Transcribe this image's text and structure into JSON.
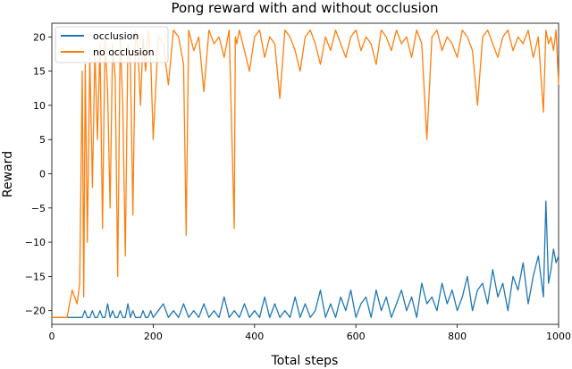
{
  "chart_data": {
    "type": "line",
    "title": "Pong reward with and without occlusion",
    "xlabel": "Total steps",
    "ylabel": "Reward",
    "xlim": [
      0,
      1000
    ],
    "ylim": [
      -22,
      22
    ],
    "xticks": [
      0,
      200,
      400,
      600,
      800,
      1000
    ],
    "yticks": [
      -20,
      -15,
      -10,
      -5,
      0,
      5,
      10,
      15,
      20
    ],
    "grid": false,
    "legend": "top-left",
    "series": [
      {
        "name": "occlusion",
        "color": "#1f77b4",
        "x": [
          0,
          40,
          60,
          65,
          70,
          75,
          80,
          85,
          90,
          95,
          100,
          105,
          110,
          115,
          120,
          125,
          130,
          135,
          140,
          145,
          150,
          155,
          160,
          165,
          170,
          175,
          180,
          185,
          190,
          195,
          200,
          210,
          220,
          230,
          240,
          250,
          260,
          270,
          280,
          290,
          300,
          310,
          320,
          330,
          340,
          350,
          360,
          370,
          380,
          390,
          400,
          410,
          420,
          430,
          440,
          450,
          460,
          470,
          480,
          490,
          500,
          510,
          520,
          530,
          540,
          550,
          560,
          570,
          580,
          590,
          600,
          610,
          620,
          630,
          640,
          650,
          660,
          670,
          680,
          690,
          700,
          710,
          720,
          730,
          740,
          750,
          760,
          770,
          780,
          790,
          800,
          810,
          820,
          830,
          840,
          850,
          860,
          870,
          880,
          890,
          900,
          910,
          920,
          930,
          940,
          950,
          960,
          970,
          975,
          980,
          985,
          990,
          995,
          1000
        ],
        "values": [
          -21,
          -21,
          -21,
          -20,
          -21,
          -21,
          -20,
          -21,
          -21,
          -20,
          -21,
          -21,
          -19,
          -21,
          -20,
          -21,
          -21,
          -20,
          -21,
          -21,
          -19,
          -21,
          -20,
          -21,
          -21,
          -21,
          -20,
          -21,
          -21,
          -20,
          -21,
          -20,
          -19,
          -21,
          -20,
          -21,
          -19,
          -21,
          -20,
          -21,
          -19,
          -21,
          -20,
          -21,
          -18,
          -21,
          -20,
          -21,
          -19,
          -21,
          -20,
          -21,
          -18,
          -21,
          -19,
          -21,
          -20,
          -21,
          -18,
          -21,
          -19,
          -21,
          -20,
          -17,
          -21,
          -19,
          -21,
          -18,
          -20,
          -17,
          -21,
          -19,
          -18,
          -21,
          -17,
          -20,
          -18,
          -21,
          -19,
          -17,
          -20,
          -18,
          -21,
          -16,
          -19,
          -18,
          -20,
          -16,
          -19,
          -17,
          -20,
          -18,
          -15,
          -20,
          -17,
          -16,
          -19,
          -14,
          -18,
          -16,
          -20,
          -15,
          -17,
          -13,
          -19,
          -15,
          -12,
          -18,
          -4,
          -16,
          -14,
          -11,
          -13,
          -12
        ]
      },
      {
        "name": "no occlusion",
        "color": "#ff7f0e",
        "x": [
          0,
          30,
          40,
          50,
          55,
          60,
          63,
          66,
          70,
          75,
          80,
          85,
          90,
          95,
          100,
          105,
          110,
          115,
          120,
          125,
          130,
          135,
          140,
          145,
          150,
          155,
          160,
          165,
          170,
          175,
          180,
          185,
          190,
          195,
          200,
          210,
          220,
          230,
          240,
          250,
          260,
          265,
          270,
          280,
          290,
          300,
          310,
          320,
          330,
          340,
          350,
          360,
          362,
          365,
          370,
          380,
          390,
          400,
          410,
          420,
          430,
          440,
          450,
          460,
          470,
          480,
          490,
          500,
          510,
          520,
          530,
          540,
          550,
          560,
          570,
          580,
          590,
          600,
          610,
          620,
          630,
          640,
          650,
          660,
          670,
          680,
          690,
          700,
          710,
          720,
          730,
          740,
          750,
          760,
          770,
          780,
          790,
          800,
          810,
          820,
          830,
          840,
          850,
          860,
          870,
          880,
          890,
          900,
          910,
          920,
          930,
          940,
          950,
          960,
          970,
          975,
          980,
          985,
          990,
          995,
          1000
        ],
        "values": [
          -21,
          -21,
          -17,
          -19,
          -16,
          15,
          -18,
          16,
          -10,
          17,
          -2,
          18,
          5,
          19,
          -8,
          20,
          12,
          -5,
          19,
          14,
          -15,
          20,
          10,
          -12,
          19,
          16,
          -6,
          21,
          18,
          10,
          20,
          15,
          21,
          17,
          5,
          20,
          19,
          13,
          21,
          20,
          16,
          -9,
          21,
          18,
          20,
          12,
          21,
          19,
          20,
          17,
          21,
          -8,
          20,
          19,
          21,
          18,
          15,
          20,
          21,
          17,
          20,
          19,
          11,
          21,
          20,
          18,
          15,
          20,
          21,
          19,
          16,
          20,
          18,
          21,
          19,
          17,
          20,
          21,
          18,
          20,
          19,
          16,
          21,
          20,
          18,
          21,
          19,
          20,
          17,
          21,
          19,
          5,
          20,
          21,
          18,
          20,
          19,
          17,
          21,
          20,
          18,
          10,
          20,
          21,
          19,
          17,
          20,
          21,
          18,
          20,
          19,
          21,
          17,
          20,
          9,
          21,
          19,
          20,
          18,
          21,
          13
        ]
      }
    ]
  }
}
